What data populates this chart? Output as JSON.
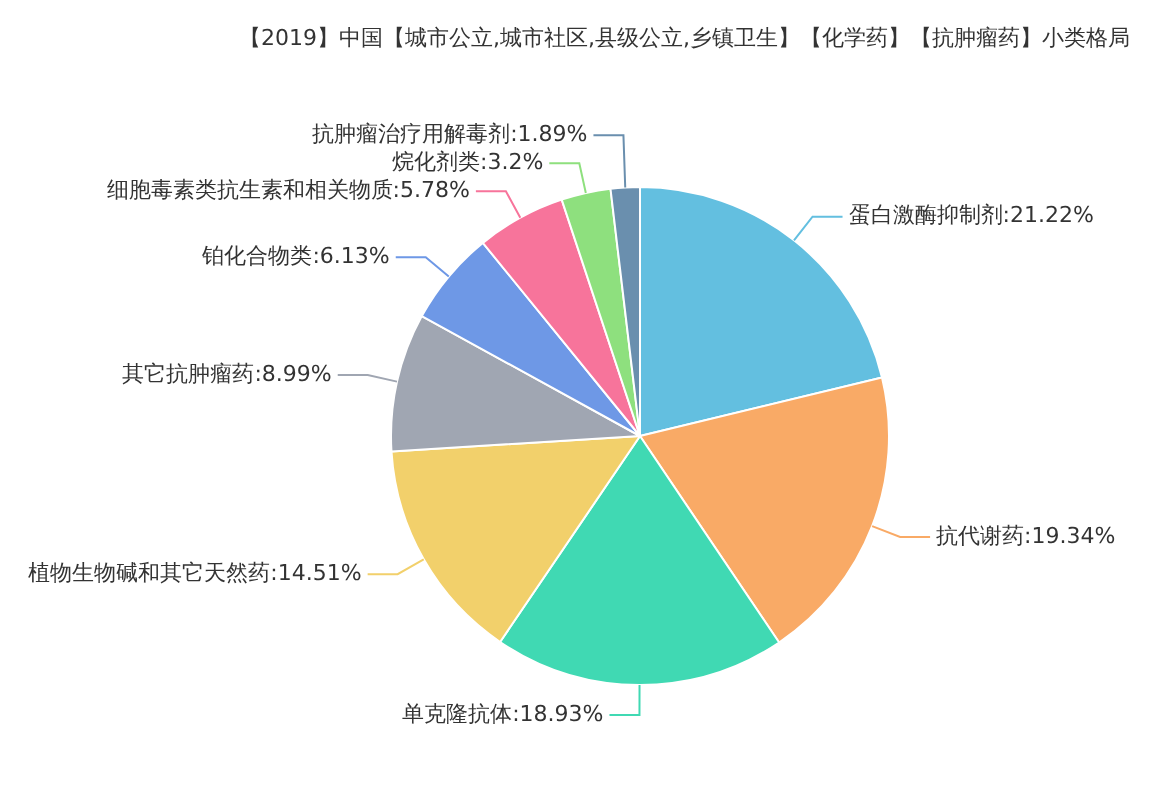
{
  "chart_data": {
    "type": "pie",
    "title": "【2019】中国【城市公立,城市社区,县级公立,乡镇卫生】【化学药】【抗肿瘤药】小类格局",
    "categories": [
      "蛋白激酶抑制剂",
      "抗代谢药",
      "单克隆抗体",
      "植物生物碱和其它天然药",
      "其它抗肿瘤药",
      "铂化合物类",
      "细胞毒素类抗生素和相关物质",
      "烷化剂类",
      "抗肿瘤治疗用解毒剂"
    ],
    "values": [
      21.22,
      19.34,
      18.93,
      14.51,
      8.99,
      6.13,
      5.78,
      3.2,
      1.89
    ],
    "value_labels": [
      "21.22%",
      "19.34%",
      "18.93%",
      "14.51%",
      "8.99%",
      "6.13%",
      "5.78%",
      "3.2%",
      "1.89%"
    ],
    "colors": [
      "#63bfe0",
      "#f9aa66",
      "#40d9b3",
      "#f2d06b",
      "#a0a6b2",
      "#6e98e6",
      "#f7749b",
      "#8ee07e",
      "#6a8fae"
    ],
    "legend": false
  }
}
